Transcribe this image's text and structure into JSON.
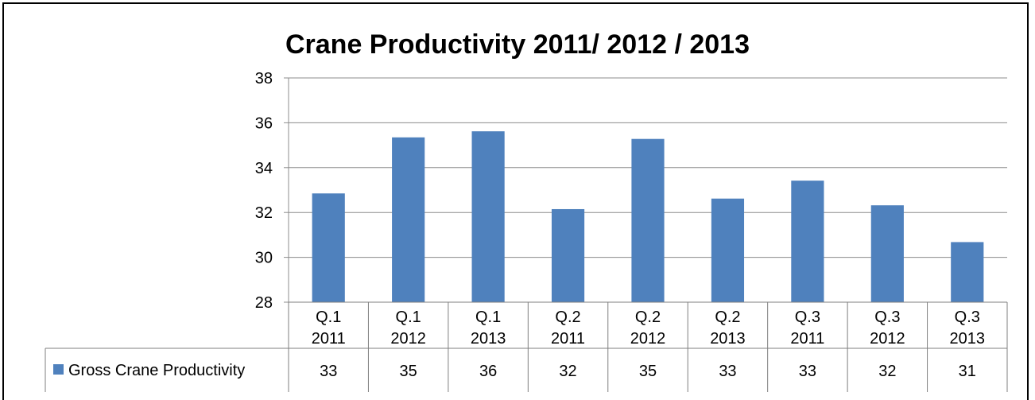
{
  "chart_data": {
    "type": "bar",
    "title": "Crane Productivity 2011/ 2012 / 2013",
    "categories": [
      [
        "Q.1",
        "2011"
      ],
      [
        "Q.1",
        "2012"
      ],
      [
        "Q.1",
        "2013"
      ],
      [
        "Q.2",
        "2011"
      ],
      [
        "Q.2",
        "2012"
      ],
      [
        "Q.2",
        "2013"
      ],
      [
        "Q.3",
        "2011"
      ],
      [
        "Q.3",
        "2012"
      ],
      [
        "Q.3",
        "2013"
      ]
    ],
    "series": [
      {
        "name": "Gross Crane Productivity",
        "color": "#4f81bd",
        "values": [
          32.85,
          35.35,
          35.62,
          32.15,
          35.28,
          32.62,
          33.42,
          32.32,
          30.68
        ],
        "table_labels": [
          "33",
          "35",
          "36",
          "32",
          "35",
          "33",
          "33",
          "32",
          "31"
        ]
      }
    ],
    "ylim": [
      28,
      38
    ],
    "yticks": [
      "28",
      "30",
      "32",
      "34",
      "36",
      "38"
    ],
    "grid": true,
    "legend": "data-table-left",
    "xlabel": "",
    "ylabel": ""
  }
}
